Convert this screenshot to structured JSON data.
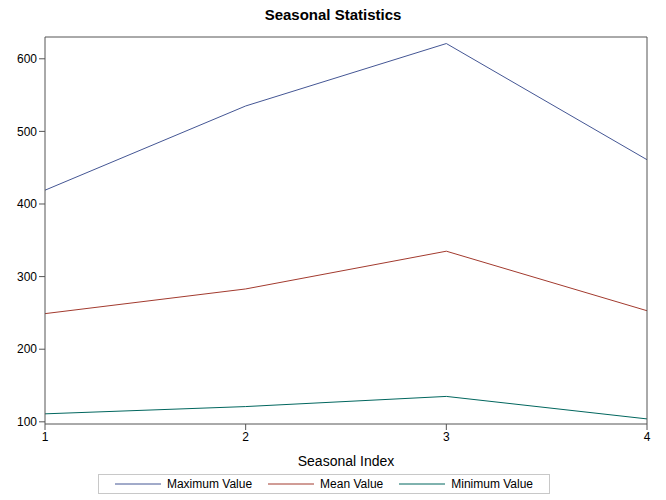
{
  "chart_data": {
    "type": "line",
    "title": "Seasonal Statistics",
    "x_label": "Seasonal Index",
    "x": [
      1,
      2,
      3,
      4
    ],
    "xlim": [
      1,
      4
    ],
    "xticks": [
      1,
      2,
      3,
      4
    ],
    "ylim": [
      97,
      630
    ],
    "yticks": [
      100,
      200,
      300,
      400,
      500,
      600
    ],
    "grid": false,
    "legend": "bottom",
    "series": [
      {
        "name": "Maximum Value",
        "color": "#445694",
        "values": [
          419,
          535,
          621,
          461
        ]
      },
      {
        "name": "Mean Value",
        "color": "#a23a2e",
        "values": [
          249,
          283,
          335,
          253
        ]
      },
      {
        "name": "Minimum Value",
        "color": "#01665e",
        "values": [
          111,
          121,
          135,
          104
        ]
      }
    ]
  }
}
